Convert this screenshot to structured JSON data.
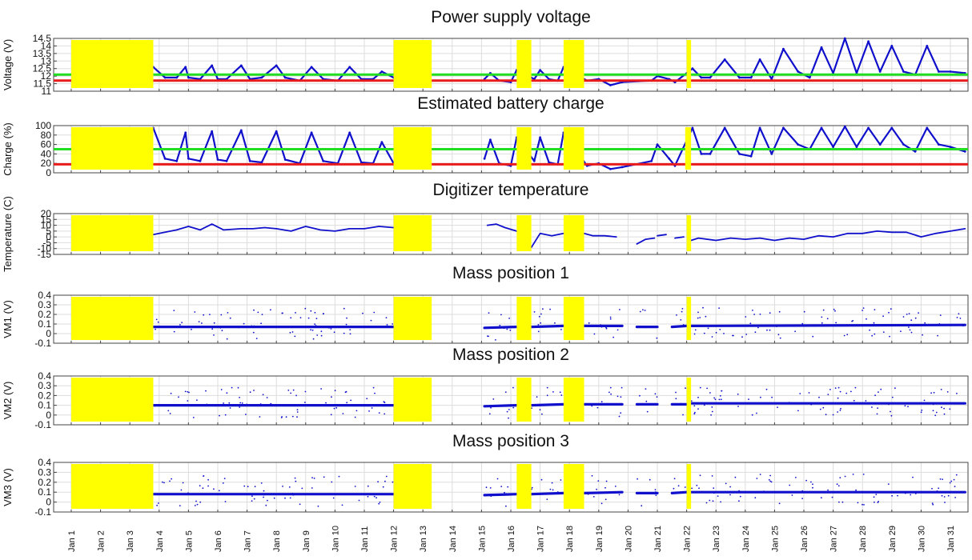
{
  "chart_data": [
    {
      "type": "scatter",
      "title": "Power supply voltage",
      "ylabel": "Voltage (V)",
      "ylim": [
        11,
        14.5
      ],
      "yticks": [
        11,
        11.5,
        12,
        12.5,
        13,
        13.5,
        14,
        14.5
      ],
      "ytick_labels": [
        "11",
        "11.5",
        "12",
        "12.5",
        "13",
        "13.5",
        "14",
        "14.5"
      ],
      "thresholds": [
        {
          "value": 12.1,
          "color": "#22dd22"
        },
        {
          "value": 11.7,
          "color": "#e81c1c"
        }
      ],
      "gaps": [
        [
          1,
          3.8
        ],
        [
          12.0,
          13.3
        ],
        [
          16.2,
          16.7
        ],
        [
          17.8,
          18.5
        ],
        [
          22.0,
          22.15
        ]
      ],
      "series": [
        {
          "color": "#1010cc",
          "x": [
            3.8,
            4.2,
            4.6,
            4.9,
            5.0,
            5.4,
            5.8,
            6.0,
            6.3,
            6.8,
            7.1,
            7.5,
            8.0,
            8.3,
            8.8,
            9.2,
            9.6,
            10.1,
            10.5,
            10.9,
            11.3,
            11.6,
            12.0,
            15.1,
            15.3,
            15.6,
            16.0,
            16.2,
            16.8,
            17.0,
            17.3,
            17.6,
            17.8,
            18.6,
            19.0,
            19.4,
            19.8,
            20.8,
            21.0,
            21.4,
            21.6,
            22.2,
            22.5,
            22.8,
            23.3,
            23.8,
            24.2,
            24.5,
            24.9,
            25.3,
            25.8,
            26.2,
            26.6,
            27.0,
            27.4,
            27.8,
            28.2,
            28.6,
            29.0,
            29.4,
            29.8,
            30.2,
            30.6,
            31.0,
            31.5
          ],
          "y": [
            12.6,
            11.9,
            11.9,
            12.6,
            11.9,
            11.8,
            12.7,
            11.8,
            11.8,
            12.7,
            11.8,
            11.9,
            12.7,
            11.9,
            11.7,
            12.6,
            11.8,
            11.7,
            12.6,
            11.8,
            11.8,
            12.3,
            11.9,
            11.8,
            12.2,
            11.7,
            11.6,
            12.4,
            11.8,
            12.4,
            11.8,
            11.7,
            12.6,
            11.7,
            11.8,
            11.4,
            11.6,
            11.7,
            12.0,
            11.8,
            11.6,
            12.5,
            11.9,
            11.9,
            13.1,
            11.9,
            11.9,
            13.1,
            11.8,
            13.8,
            12.3,
            11.9,
            13.9,
            12.2,
            14.5,
            12.2,
            14.3,
            12.3,
            14.0,
            12.3,
            12.1,
            14.0,
            12.3,
            12.3,
            12.2
          ]
        }
      ]
    },
    {
      "type": "scatter",
      "title": "Estimated battery charge",
      "ylabel": "Charge (%)",
      "ylim": [
        0,
        100
      ],
      "yticks": [
        0,
        20,
        40,
        60,
        80,
        100
      ],
      "ytick_labels": [
        "0",
        "20",
        "40",
        "60",
        "80",
        "100"
      ],
      "thresholds": [
        {
          "value": 50,
          "color": "#22dd22"
        },
        {
          "value": 18,
          "color": "#e81c1c"
        }
      ],
      "gaps": [
        [
          1,
          3.8
        ],
        [
          12.0,
          13.3
        ],
        [
          16.2,
          16.7
        ],
        [
          17.8,
          18.5
        ],
        [
          21.95,
          22.15
        ]
      ],
      "series": [
        {
          "color": "#1010cc",
          "x": [
            3.8,
            4.2,
            4.6,
            4.9,
            5.0,
            5.4,
            5.8,
            6.0,
            6.3,
            6.8,
            7.1,
            7.5,
            8.0,
            8.3,
            8.8,
            9.2,
            9.6,
            10.1,
            10.5,
            10.9,
            11.3,
            11.6,
            12.0,
            15.1,
            15.3,
            15.6,
            16.0,
            16.2,
            16.8,
            17.0,
            17.3,
            17.6,
            17.8,
            18.6,
            19.0,
            19.4,
            19.8,
            20.8,
            21.0,
            21.4,
            21.6,
            22.2,
            22.5,
            22.8,
            23.3,
            23.8,
            24.2,
            24.5,
            24.9,
            25.3,
            25.8,
            26.2,
            26.6,
            27.0,
            27.4,
            27.8,
            28.2,
            28.6,
            29.0,
            29.4,
            29.8,
            30.2,
            30.6,
            31.0,
            31.5
          ],
          "y": [
            95,
            30,
            25,
            85,
            30,
            25,
            88,
            28,
            25,
            90,
            25,
            22,
            88,
            28,
            20,
            85,
            25,
            20,
            85,
            22,
            20,
            65,
            20,
            30,
            70,
            20,
            15,
            75,
            25,
            75,
            22,
            18,
            85,
            15,
            20,
            8,
            12,
            25,
            60,
            30,
            15,
            95,
            40,
            40,
            95,
            40,
            35,
            95,
            40,
            95,
            60,
            50,
            95,
            55,
            98,
            55,
            95,
            60,
            95,
            60,
            45,
            95,
            60,
            55,
            45
          ]
        }
      ]
    },
    {
      "type": "line",
      "title": "Digitizer temperature",
      "ylabel": "Temperature (C)",
      "ylim": [
        -15,
        20
      ],
      "yticks": [
        -15,
        -10,
        -5,
        0,
        5,
        10,
        15,
        20
      ],
      "ytick_labels": [
        "-15",
        "-10",
        "-5",
        "0",
        "5",
        "10",
        "15",
        "20"
      ],
      "gaps": [
        [
          1,
          3.8
        ],
        [
          12.0,
          13.3
        ],
        [
          16.2,
          16.7
        ],
        [
          17.8,
          18.5
        ],
        [
          22.0,
          22.15
        ]
      ],
      "series": [
        {
          "color": "#1010cc",
          "segments": [
            {
              "x": [
                3.8,
                4.2,
                4.6,
                5.0,
                5.4,
                5.8,
                6.2,
                6.8,
                7.2,
                7.6,
                8.0,
                8.5,
                9.0,
                9.5,
                10.0,
                10.5,
                11.0,
                11.5,
                12.0
              ],
              "y": [
                2,
                4,
                6,
                9,
                6,
                11,
                6,
                7,
                7,
                8,
                7,
                5,
                9,
                6,
                5,
                7,
                7,
                9,
                8
              ]
            },
            {
              "x": [
                15.2,
                15.5,
                15.8,
                16.2
              ],
              "y": [
                10,
                11,
                8,
                5
              ]
            },
            {
              "x": [
                16.7,
                17.0,
                17.4,
                17.8
              ],
              "y": [
                -9,
                3,
                1,
                3
              ]
            },
            {
              "x": [
                18.5,
                18.8,
                19.2,
                19.6
              ],
              "y": [
                3,
                1,
                1,
                0
              ]
            },
            {
              "x": [
                20.3,
                20.6,
                20.9
              ],
              "y": [
                -6,
                -2,
                -1
              ]
            },
            {
              "x": [
                21.0,
                21.3
              ],
              "y": [
                1,
                2
              ]
            },
            {
              "x": [
                21.6,
                21.9
              ],
              "y": [
                -1,
                0
              ]
            },
            {
              "x": [
                22.15,
                22.4,
                23.0,
                23.5,
                24.0,
                24.5,
                25.0,
                25.5,
                26.0,
                26.5,
                27.0,
                27.5,
                28.0,
                28.5,
                29.0,
                29.5,
                30.0,
                30.5,
                31.0,
                31.5
              ],
              "y": [
                -3,
                -1,
                -3,
                -1,
                -2,
                -1,
                -3,
                -1,
                -2,
                1,
                0,
                3,
                3,
                5,
                4,
                4,
                0,
                3,
                5,
                7
              ]
            }
          ]
        }
      ]
    },
    {
      "type": "scatter",
      "title": "Mass position 1",
      "ylabel": "VM1 (V)",
      "ylim": [
        -0.1,
        0.4
      ],
      "yticks": [
        -0.1,
        0,
        0.1,
        0.2,
        0.3,
        0.4
      ],
      "ytick_labels": [
        "-0.1",
        "0",
        "0.1",
        "0.2",
        "0.3",
        "0.4"
      ],
      "gaps": [
        [
          1,
          3.8
        ],
        [
          12.0,
          13.3
        ],
        [
          16.2,
          16.7
        ],
        [
          17.8,
          18.5
        ],
        [
          22.0,
          22.15
        ]
      ],
      "series": [
        {
          "color": "#1010cc",
          "segments": [
            {
              "x": [
                3.8,
                12.0
              ],
              "y": [
                0.07,
                0.07
              ]
            },
            {
              "x": [
                15.1,
                16.2
              ],
              "y": [
                0.06,
                0.07
              ]
            },
            {
              "x": [
                16.7,
                17.8
              ],
              "y": [
                0.07,
                0.08
              ]
            },
            {
              "x": [
                18.5,
                19.8
              ],
              "y": [
                0.08,
                0.08
              ]
            },
            {
              "x": [
                20.3,
                21.0
              ],
              "y": [
                0.07,
                0.07
              ]
            },
            {
              "x": [
                21.5,
                22.0
              ],
              "y": [
                0.07,
                0.08
              ]
            },
            {
              "x": [
                22.15,
                31.5
              ],
              "y": [
                0.08,
                0.09
              ]
            }
          ]
        }
      ]
    },
    {
      "type": "scatter",
      "title": "Mass position 2",
      "ylabel": "VM2 (V)",
      "ylim": [
        -0.1,
        0.4
      ],
      "yticks": [
        -0.1,
        0,
        0.1,
        0.2,
        0.3,
        0.4
      ],
      "ytick_labels": [
        "-0.1",
        "0",
        "0.1",
        "0.2",
        "0.3",
        "0.4"
      ],
      "gaps": [
        [
          1,
          3.8
        ],
        [
          12.0,
          13.3
        ],
        [
          16.2,
          16.7
        ],
        [
          17.8,
          18.5
        ],
        [
          22.0,
          22.15
        ]
      ],
      "series": [
        {
          "color": "#1010cc",
          "segments": [
            {
              "x": [
                3.8,
                12.0
              ],
              "y": [
                0.1,
                0.1
              ]
            },
            {
              "x": [
                15.1,
                16.2
              ],
              "y": [
                0.09,
                0.1
              ]
            },
            {
              "x": [
                16.7,
                17.8
              ],
              "y": [
                0.1,
                0.11
              ]
            },
            {
              "x": [
                18.5,
                19.8
              ],
              "y": [
                0.11,
                0.11
              ]
            },
            {
              "x": [
                20.3,
                21.0
              ],
              "y": [
                0.11,
                0.11
              ]
            },
            {
              "x": [
                21.5,
                22.0
              ],
              "y": [
                0.11,
                0.11
              ]
            },
            {
              "x": [
                22.15,
                31.5
              ],
              "y": [
                0.12,
                0.12
              ]
            }
          ]
        }
      ]
    },
    {
      "type": "scatter",
      "title": "Mass position 3",
      "ylabel": "VM3 (V)",
      "ylim": [
        -0.1,
        0.4
      ],
      "yticks": [
        -0.1,
        0,
        0.1,
        0.2,
        0.3,
        0.4
      ],
      "ytick_labels": [
        "-0.1",
        "0",
        "0.1",
        "0.2",
        "0.3",
        "0.4"
      ],
      "gaps": [
        [
          1,
          3.8
        ],
        [
          12.0,
          13.3
        ],
        [
          16.2,
          16.7
        ],
        [
          17.8,
          18.5
        ],
        [
          22.0,
          22.15
        ]
      ],
      "series": [
        {
          "color": "#1010cc",
          "segments": [
            {
              "x": [
                3.8,
                12.0
              ],
              "y": [
                0.08,
                0.08
              ]
            },
            {
              "x": [
                15.1,
                16.2
              ],
              "y": [
                0.07,
                0.08
              ]
            },
            {
              "x": [
                16.7,
                17.8
              ],
              "y": [
                0.08,
                0.09
              ]
            },
            {
              "x": [
                18.5,
                19.8
              ],
              "y": [
                0.09,
                0.1
              ]
            },
            {
              "x": [
                20.3,
                21.0
              ],
              "y": [
                0.09,
                0.09
              ]
            },
            {
              "x": [
                21.5,
                22.0
              ],
              "y": [
                0.09,
                0.1
              ]
            },
            {
              "x": [
                22.15,
                31.5
              ],
              "y": [
                0.1,
                0.1
              ]
            }
          ]
        }
      ]
    }
  ],
  "x_axis": {
    "xlim": [
      0.4,
      31.6
    ],
    "ticks": [
      1,
      2,
      3,
      4,
      5,
      6,
      7,
      8,
      9,
      10,
      11,
      12,
      13,
      14,
      15,
      16,
      17,
      18,
      19,
      20,
      21,
      22,
      23,
      24,
      25,
      26,
      27,
      28,
      29,
      30,
      31
    ],
    "tick_labels": [
      "Jan 1",
      "Jan 2",
      "Jan 3",
      "Jan 4",
      "Jan 5",
      "Jan 6",
      "Jan 7",
      "Jan 8",
      "Jan 9",
      "Jan 10",
      "Jan 11",
      "Jan 12",
      "Jan 13",
      "Jan 14",
      "Jan 15",
      "Jan 16",
      "Jan 17",
      "Jan 18",
      "Jan 19",
      "Jan 20",
      "Jan 21",
      "Jan 22",
      "Jan 23",
      "Jan 24",
      "Jan 25",
      "Jan 26",
      "Jan 27",
      "Jan 28",
      "Jan 29",
      "Jan 30",
      "Jan 31"
    ]
  },
  "colors": {
    "gap_fill": "#ffff00",
    "data": "#1010cc",
    "grid": "#dddddd",
    "axis": "#444444"
  }
}
